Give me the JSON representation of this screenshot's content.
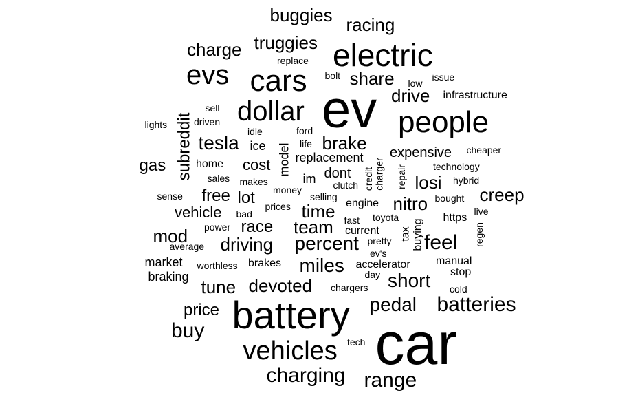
{
  "words": [
    "car",
    "ev",
    "battery",
    "electric",
    "cars",
    "people",
    "evs",
    "dollar",
    "vehicles",
    "charging",
    "range",
    "batteries",
    "feel",
    "pedal",
    "tesla",
    "percent",
    "short",
    "miles",
    "team",
    "drive",
    "brake",
    "buggies",
    "racing",
    "truggies",
    "charge",
    "share",
    "driving",
    "time",
    "nitro",
    "losi",
    "creep",
    "buy",
    "tune",
    "devoted",
    "price",
    "mod",
    "race",
    "free",
    "lot",
    "gas",
    "cost",
    "vehicle",
    "subreddit",
    "expensive",
    "dont",
    "model",
    "replacement",
    "im",
    "ice",
    "market",
    "braking",
    "brakes",
    "engine",
    "current",
    "toyota",
    "fast",
    "pretty",
    "ev's",
    "accelerator",
    "manual",
    "stop",
    "cold",
    "day",
    "chargers",
    "worthless",
    "average",
    "power",
    "bad",
    "prices",
    "money",
    "selling",
    "clutch",
    "credit",
    "charger",
    "repair",
    "buying",
    "tax",
    "regen",
    "live",
    "https",
    "bought",
    "hybrid",
    "technology",
    "cheaper",
    "infrastructure",
    "issue",
    "low",
    "bolt",
    "replace",
    "sell",
    "lights",
    "driven",
    "idle",
    "ford",
    "life",
    "home",
    "sales",
    "makes",
    "sense",
    "tech"
  ],
  "color": "#000000"
}
